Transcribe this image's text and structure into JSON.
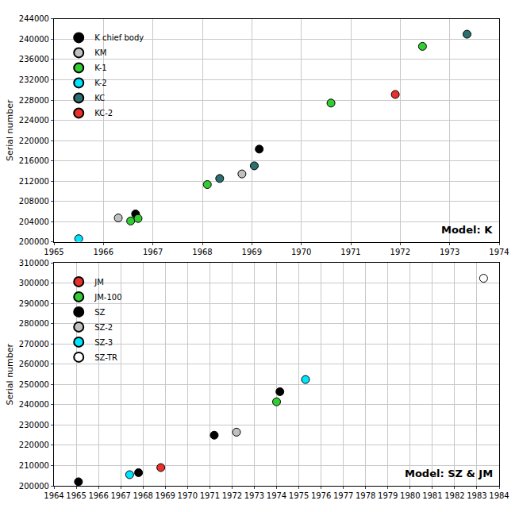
{
  "chart_data": [
    {
      "type": "scatter",
      "y_label": "Serial number",
      "annotations": [
        "Model: K"
      ],
      "xlim": [
        1965,
        1974
      ],
      "xticks": [
        1965,
        1966,
        1967,
        1968,
        1969,
        1970,
        1971,
        1972,
        1973,
        1974
      ],
      "ylim": [
        200000,
        244000
      ],
      "yticks": [
        200000,
        204000,
        208000,
        212000,
        216000,
        220000,
        224000,
        228000,
        232000,
        236000,
        240000,
        244000
      ],
      "grid": true,
      "legend": "upper left",
      "marker": "circle",
      "series": [
        {
          "name": "K chief body",
          "color": "#000000",
          "x": [
            1966.65,
            1969.15
          ],
          "values": [
            205500,
            218300
          ]
        },
        {
          "name": "KM",
          "color": "#c0c0c0",
          "x": [
            1966.3,
            1968.8
          ],
          "values": [
            204700,
            213400
          ]
        },
        {
          "name": "K-1",
          "color": "#33cc33",
          "x": [
            1966.55,
            1966.7,
            1968.1,
            1970.6,
            1972.45
          ],
          "values": [
            204100,
            204600,
            211300,
            227400,
            238600
          ]
        },
        {
          "name": "K-2",
          "color": "#00e5ff",
          "x": [
            1965.5
          ],
          "values": [
            200600
          ]
        },
        {
          "name": "KC",
          "color": "#2b6f6f",
          "x": [
            1968.35,
            1969.05,
            1973.35
          ],
          "values": [
            212500,
            215000,
            241000
          ]
        },
        {
          "name": "KC-2",
          "color": "#e8312a",
          "x": [
            1971.9
          ],
          "values": [
            229100
          ]
        }
      ]
    },
    {
      "type": "scatter",
      "y_label": "Serial number",
      "annotations": [
        "Model: SZ & JM"
      ],
      "xlim": [
        1964,
        1984
      ],
      "xticks": [
        1964,
        1965,
        1966,
        1967,
        1968,
        1969,
        1970,
        1971,
        1972,
        1973,
        1974,
        1975,
        1976,
        1977,
        1978,
        1979,
        1980,
        1981,
        1982,
        1983,
        1984
      ],
      "ylim": [
        200000,
        310000
      ],
      "yticks": [
        200000,
        210000,
        220000,
        230000,
        240000,
        250000,
        260000,
        270000,
        280000,
        290000,
        300000,
        310000
      ],
      "grid": true,
      "legend": "upper left",
      "marker": "circle",
      "series": [
        {
          "name": "JM",
          "color": "#e8312a",
          "x": [
            1968.8
          ],
          "values": [
            209000
          ]
        },
        {
          "name": "JM-100",
          "color": "#33cc33",
          "x": [
            1974.0
          ],
          "values": [
            241500
          ]
        },
        {
          "name": "SZ",
          "color": "#000000",
          "x": [
            1965.1,
            1967.8,
            1971.2,
            1974.15
          ],
          "values": [
            202000,
            206500,
            225000,
            246500
          ]
        },
        {
          "name": "SZ-2",
          "color": "#c0c0c0",
          "x": [
            1972.2
          ],
          "values": [
            226500
          ]
        },
        {
          "name": "SZ-3",
          "color": "#00e5ff",
          "x": [
            1967.4,
            1975.3
          ],
          "values": [
            205500,
            252500
          ]
        },
        {
          "name": "SZ-TR",
          "color": "#ffffff",
          "x": [
            1983.3
          ],
          "values": [
            302500
          ]
        }
      ]
    }
  ]
}
